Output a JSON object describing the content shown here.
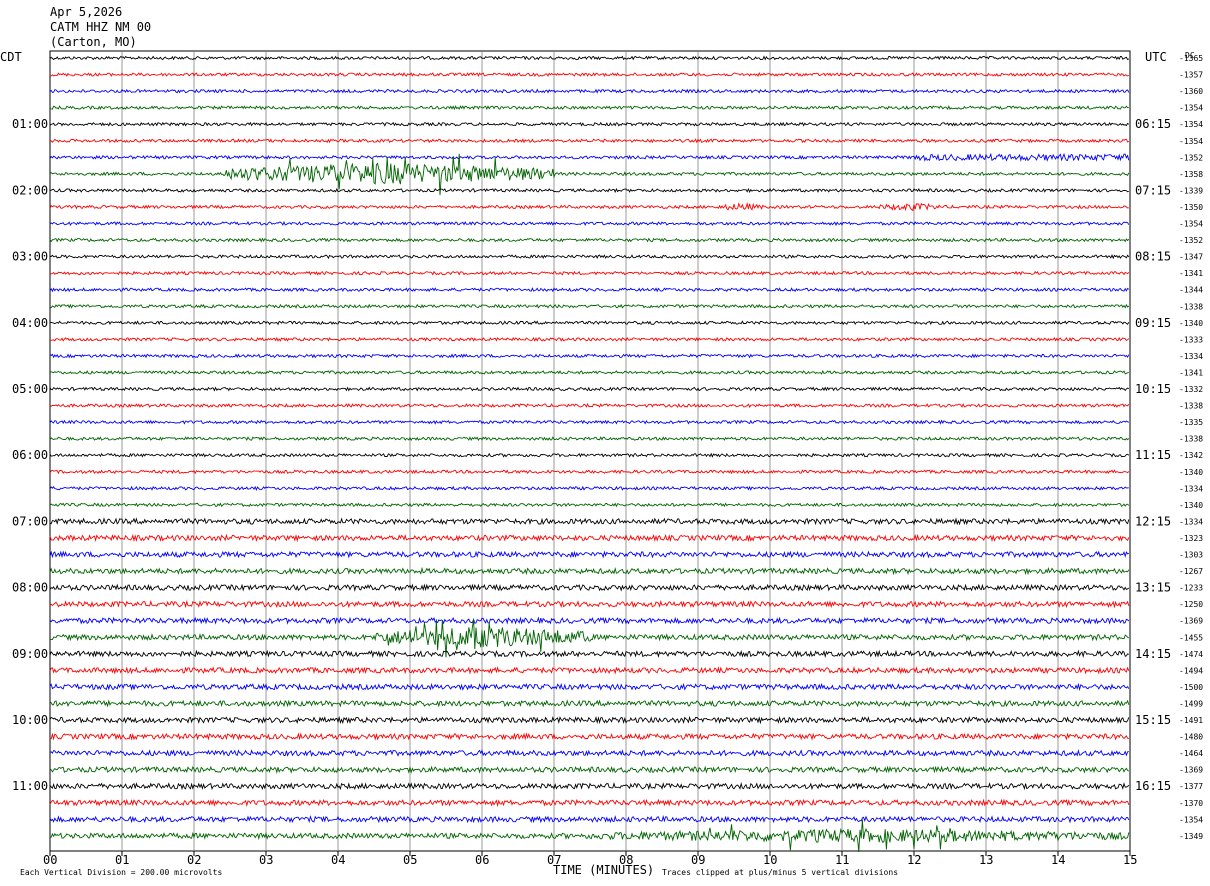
{
  "header": {
    "date": "Apr 5,2026",
    "station": "CATM HHZ NM 00",
    "location": "(Carton, MO)"
  },
  "labels": {
    "left_timezone": "CDT",
    "right_timezone": "UTC",
    "dc_label": "DC",
    "x_axis_label": "TIME (MINUTES)",
    "scale_note": "Each Vertical Division =  200.00 microvolts",
    "clip_note": "Traces clipped at plus/minus 5 vertical divisions"
  },
  "colors": {
    "trace_cycle": [
      "#000000",
      "#ff0000",
      "#0000ff",
      "#006400"
    ],
    "grid": "#808080"
  },
  "chart_data": {
    "type": "line",
    "x": [
      "00",
      "01",
      "02",
      "03",
      "04",
      "05",
      "06",
      "07",
      "08",
      "09",
      "10",
      "11",
      "12",
      "13",
      "14",
      "15"
    ],
    "xlim": [
      0,
      15
    ],
    "left_hour_labels": [
      "01:00",
      "02:00",
      "03:00",
      "04:00",
      "05:00",
      "06:00",
      "07:00",
      "08:00",
      "09:00",
      "10:00",
      "11:00"
    ],
    "right_hour_labels": [
      "06:15",
      "07:15",
      "08:15",
      "09:15",
      "10:15",
      "11:15",
      "12:15",
      "13:15",
      "14:15",
      "15:15",
      "16:15"
    ],
    "dc_offsets": [
      -1365,
      -1357,
      -1360,
      -1354,
      -1354,
      -1354,
      -1352,
      -1358,
      -1339,
      -1350,
      -1354,
      -1352,
      -1347,
      -1341,
      -1344,
      -1338,
      -1340,
      -1333,
      -1334,
      -1341,
      -1332,
      -1338,
      -1335,
      -1338,
      -1342,
      -1340,
      -1334,
      -1340,
      -1334,
      -1323,
      -1303,
      -1267,
      -1233,
      -1250,
      -1369,
      -1455,
      -1474,
      -1494,
      -1500,
      -1499,
      -1491,
      -1480,
      -1464,
      -1369,
      -1377,
      -1370,
      -1354,
      -1349
    ],
    "events": [
      {
        "trace": 7,
        "start_min": 2.4,
        "end_min": 7.0,
        "amplitude": "large"
      },
      {
        "trace": 9,
        "start_min": 9.3,
        "end_min": 9.9,
        "amplitude": "small"
      },
      {
        "trace": 9,
        "start_min": 11.5,
        "end_min": 12.4,
        "amplitude": "small"
      },
      {
        "trace": 35,
        "start_min": 4.5,
        "end_min": 7.5,
        "amplitude": "large"
      },
      {
        "trace": 47,
        "start_min": 7.5,
        "end_min": 15.0,
        "amplitude": "medium"
      }
    ]
  }
}
